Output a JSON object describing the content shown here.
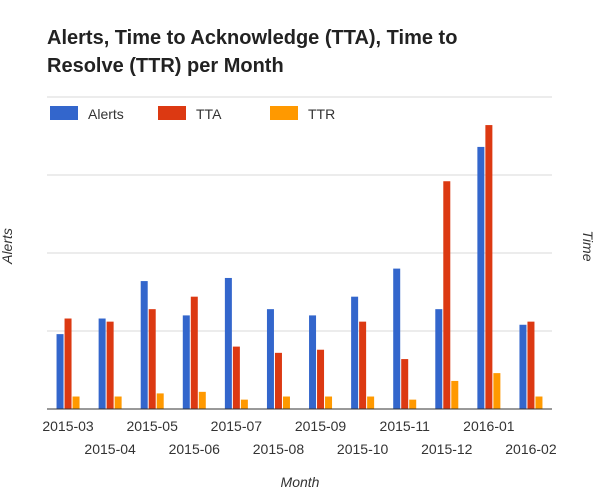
{
  "chart_data": {
    "type": "bar",
    "title_lines": [
      "Alerts, Time to Acknowledge (TTA), Time to",
      "Resolve (TTR) per Month"
    ],
    "xlabel": "Month",
    "ylabel_left": "Alerts",
    "ylabel_right": "Time",
    "ylim": [
      0,
      100
    ],
    "grid": true,
    "legend_position": "top-left",
    "categories": [
      "2015-03",
      "2015-04",
      "2015-05",
      "2015-06",
      "2015-07",
      "2015-08",
      "2015-09",
      "2015-10",
      "2015-11",
      "2015-12",
      "2016-01",
      "2016-02"
    ],
    "series": [
      {
        "name": "Alerts",
        "color": "#3366cc",
        "values": [
          24,
          29,
          41,
          30,
          42,
          32,
          30,
          36,
          45,
          32,
          84,
          27
        ]
      },
      {
        "name": "TTA",
        "color": "#dc3912",
        "values": [
          29,
          28,
          32,
          36,
          20,
          18,
          19,
          28,
          16,
          73,
          91,
          28
        ]
      },
      {
        "name": "TTR",
        "color": "#ff9900",
        "values": [
          4,
          4,
          5,
          5.5,
          3,
          4,
          4,
          4,
          3,
          9,
          11.5,
          4
        ]
      }
    ]
  }
}
